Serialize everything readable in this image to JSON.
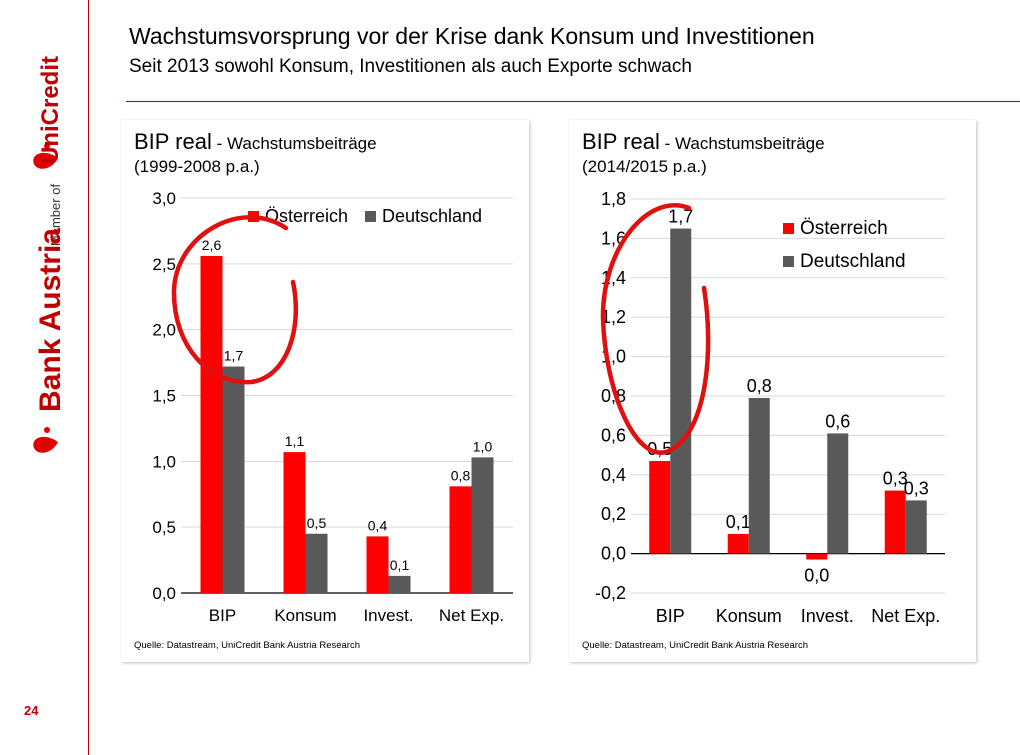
{
  "header": {
    "title": "Wachstumsvorsprung vor der Krise dank Konsum und Investitionen",
    "subtitle": "Seit 2013 sowohl Konsum, Investitionen als auch Exporte schwach"
  },
  "sidebar": {
    "logo_text": "Bank Austria",
    "member_text": "Member of",
    "group_text": "UniCredit",
    "page_number": "24"
  },
  "colors": {
    "austria": "#ff0000",
    "germany": "#595959",
    "accent": "#c00000",
    "annotation": "#e01010"
  },
  "chart_data": [
    {
      "type": "bar",
      "title_main": "BIP real",
      "title_rest": " - Wachstumsbeiträge",
      "subtitle": "(1999-2008 p.a.)",
      "categories": [
        "BIP",
        "Konsum",
        "Invest.",
        "Net Exp."
      ],
      "series": [
        {
          "name": "Österreich",
          "values": [
            2.56,
            1.07,
            0.43,
            0.81
          ],
          "labels": [
            "2,6",
            "1,1",
            "0,4",
            "0,8"
          ]
        },
        {
          "name": "Deutschland",
          "values": [
            1.72,
            0.45,
            0.13,
            1.03
          ],
          "labels": [
            "1,7",
            "0,5",
            "0,1",
            "1,0"
          ]
        }
      ],
      "ylim": [
        0,
        3
      ],
      "yticks": [
        0,
        0.5,
        1,
        1.5,
        2,
        2.5,
        3
      ],
      "ytick_labels": [
        "0,0",
        "0,5",
        "1,0",
        "1,5",
        "2,0",
        "2,5",
        "3,0"
      ],
      "grid": true,
      "legend_position": "top-right",
      "source": "Quelle: Datastream, UniCredit Bank Austria Research"
    },
    {
      "type": "bar",
      "title_main": "BIP real",
      "title_rest": " - Wachstumsbeiträge",
      "subtitle": "(2014/2015 p.a.)",
      "categories": [
        "BIP",
        "Konsum",
        "Invest.",
        "Net Exp."
      ],
      "series": [
        {
          "name": "Österreich",
          "values": [
            0.47,
            0.1,
            -0.03,
            0.32
          ],
          "labels": [
            "0,5",
            "0,1",
            "0,0",
            "0,3"
          ]
        },
        {
          "name": "Deutschland",
          "values": [
            1.65,
            0.79,
            0.61,
            0.27
          ],
          "labels": [
            "1,7",
            "0,8",
            "0,6",
            "0,3"
          ]
        }
      ],
      "ylim": [
        -0.2,
        1.8
      ],
      "yticks": [
        -0.2,
        0,
        0.2,
        0.4,
        0.6,
        0.8,
        1,
        1.2,
        1.4,
        1.6,
        1.8
      ],
      "ytick_labels": [
        "-0,2",
        "0,0",
        "0,2",
        "0,4",
        "0,6",
        "0,8",
        "1,0",
        "1,2",
        "1,4",
        "1,6",
        "1,8"
      ],
      "grid": true,
      "legend_position": "top-right",
      "source": "Quelle: Datastream, UniCredit Bank Austria Research"
    }
  ]
}
